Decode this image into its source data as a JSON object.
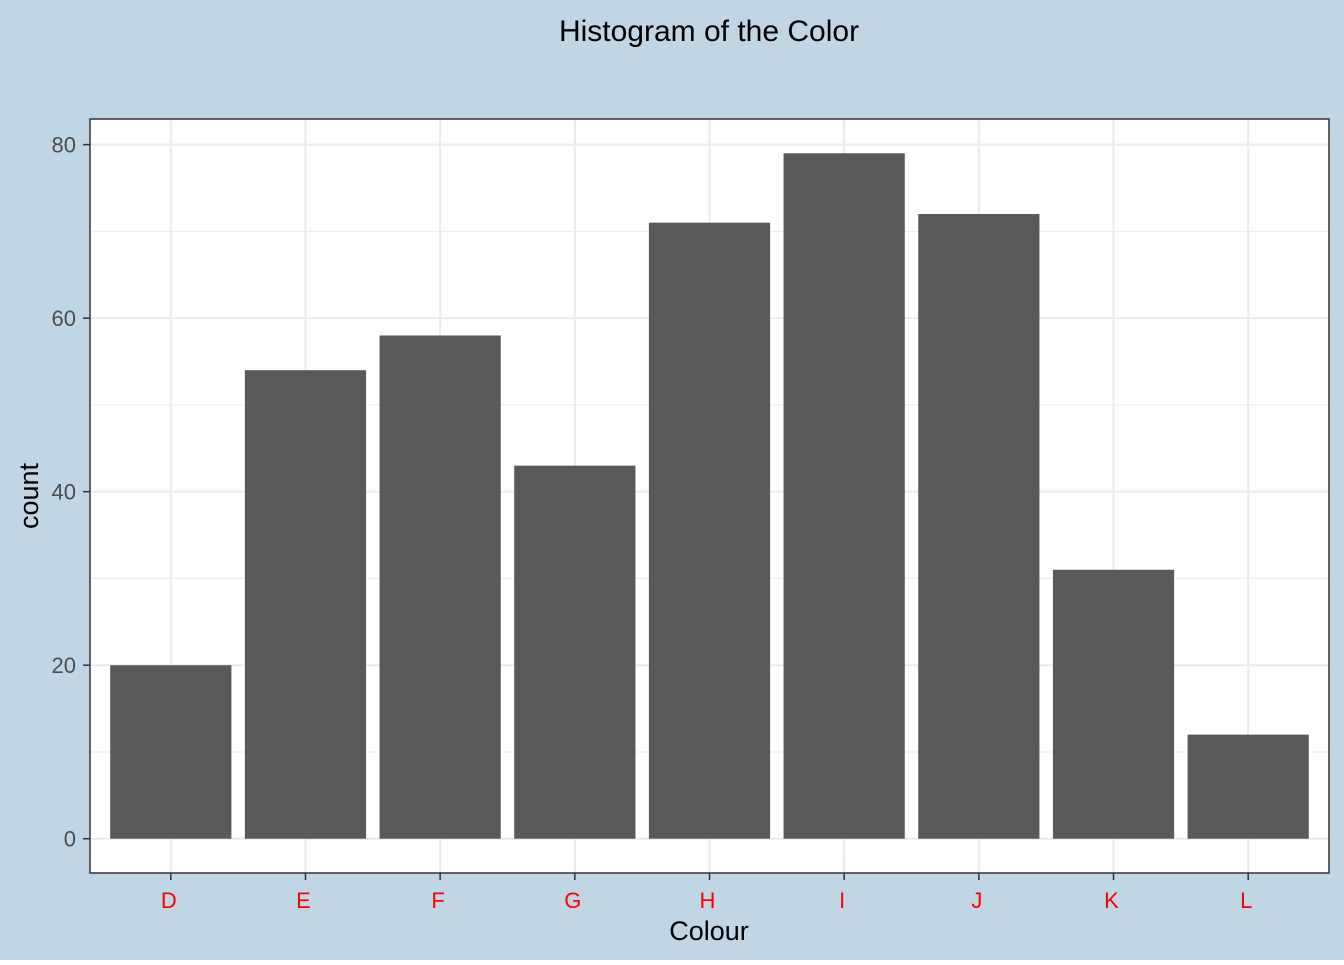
{
  "chart_data": {
    "type": "bar",
    "title": "Histogram of the Color",
    "xlabel": "Colour",
    "ylabel": "count",
    "categories": [
      "D",
      "E",
      "F",
      "G",
      "H",
      "I",
      "J",
      "K",
      "L"
    ],
    "values": [
      20,
      54,
      58,
      43,
      71,
      79,
      72,
      31,
      12
    ],
    "ylim": [
      -3.95,
      82.95
    ],
    "y_ticks": [
      0,
      20,
      40,
      60,
      80
    ],
    "y_minor_ticks": [
      10,
      30,
      50,
      70
    ],
    "grid": true,
    "legend": "none",
    "colors": {
      "background": "#c0d6e4",
      "panel": "#ffffff",
      "bar": "#595959",
      "grid": "#ebebeb",
      "panel_border": "#333333",
      "x_tick_label": "#ff0000",
      "y_tick_label": "#4d4d4d",
      "text": "#000000"
    }
  }
}
